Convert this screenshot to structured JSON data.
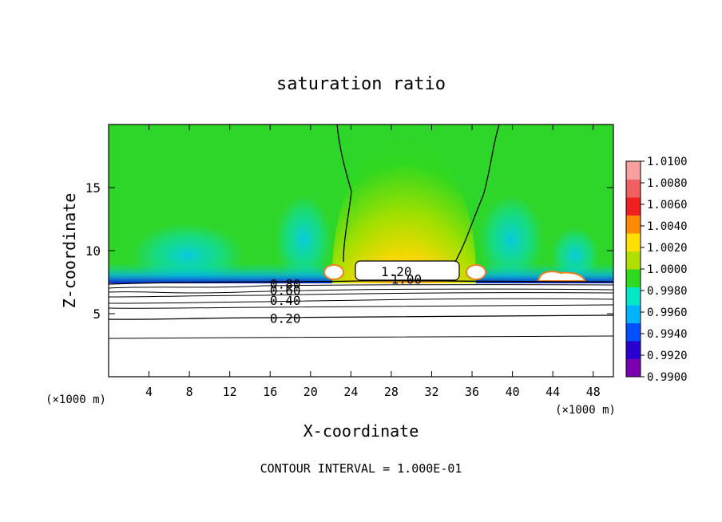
{
  "chart_data": {
    "type": "heatmap",
    "title": "saturation ratio",
    "xlabel": "X-coordinate",
    "ylabel": "Z-coordinate",
    "x_unit": "(×1000 m)",
    "y_unit": "(×1000 m)",
    "xlim": [
      0,
      50
    ],
    "ylim": [
      0,
      20
    ],
    "x_ticks": [
      4,
      8,
      12,
      16,
      20,
      24,
      28,
      32,
      36,
      40,
      44,
      48
    ],
    "y_ticks": [
      5,
      10,
      15
    ],
    "footer": "CONTOUR INTERVAL = 1.000E-01",
    "colorbar": {
      "levels": [
        0.99,
        0.992,
        0.994,
        0.996,
        0.998,
        1.0,
        1.002,
        1.004,
        1.006,
        1.008,
        1.01
      ],
      "labels": [
        "1.0100",
        "1.0080",
        "1.0060",
        "1.0040",
        "1.0020",
        "1.0000",
        "0.9980",
        "0.9960",
        "0.9940",
        "0.9920",
        "0.9900"
      ],
      "colors": [
        "#7a00b0",
        "#2a00d0",
        "#0050ff",
        "#00b4ff",
        "#00e8c8",
        "#30d820",
        "#b0e000",
        "#ffe000",
        "#ff8c00",
        "#f02020",
        "#f06060",
        "#f8a0a0"
      ]
    },
    "contours": [
      {
        "label": "1.20",
        "x": 28.5,
        "z": 8.3
      },
      {
        "label": "1.00",
        "x": 29.5,
        "z": 7.7
      },
      {
        "label": "0.80",
        "x": 17.5,
        "z": 7.3
      },
      {
        "label": "0.60",
        "x": 17.5,
        "z": 6.8
      },
      {
        "label": "0.40",
        "x": 17.5,
        "z": 6.0
      },
      {
        "label": "0.20",
        "x": 17.5,
        "z": 4.6
      }
    ]
  }
}
